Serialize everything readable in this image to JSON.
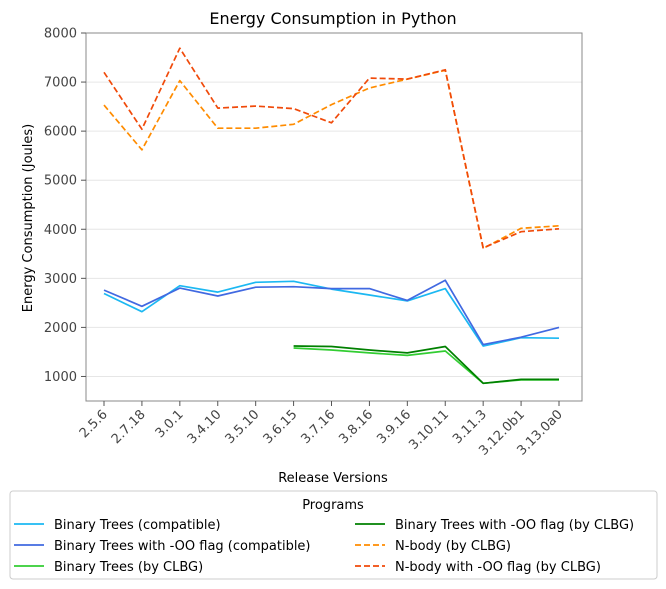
{
  "chart_data": {
    "type": "line",
    "title": "Energy Consumption in Python",
    "xlabel": "Release Versions",
    "ylabel": "Energy Consumption (Joules)",
    "categories": [
      "2.5.6",
      "2.7.18",
      "3.0.1",
      "3.4.10",
      "3.5.10",
      "3.6.15",
      "3.7.16",
      "3.8.16",
      "3.9.16",
      "3.10.11",
      "3.11.3",
      "3.12.0b1",
      "3.13.0a0"
    ],
    "ylim": [
      500,
      8000
    ],
    "yticks": [
      1000,
      2000,
      3000,
      4000,
      5000,
      6000,
      7000,
      8000
    ],
    "grid": "horizontal",
    "legend_title": "Programs",
    "legend_position": "bottom",
    "series": [
      {
        "name": "Binary Trees (compatible)",
        "color": "#1cb8f2",
        "dash": "solid",
        "values": [
          2690,
          2320,
          2850,
          2720,
          2920,
          2940,
          2780,
          2660,
          2540,
          2790,
          1620,
          1790,
          1780
        ]
      },
      {
        "name": "Binary Trees with -OO flag (compatible)",
        "color": "#4169e1",
        "dash": "solid",
        "values": [
          2760,
          2430,
          2800,
          2640,
          2820,
          2830,
          2790,
          2790,
          2550,
          2960,
          1650,
          1800,
          2000
        ]
      },
      {
        "name": "Binary Trees (by CLBG)",
        "color": "#32cd32",
        "dash": "solid",
        "values": [
          null,
          null,
          null,
          null,
          null,
          1580,
          1540,
          1480,
          1430,
          1520,
          860,
          930,
          930
        ]
      },
      {
        "name": "Binary Trees with -OO flag (by CLBG)",
        "color": "#008000",
        "dash": "solid",
        "values": [
          null,
          null,
          null,
          null,
          null,
          1620,
          1610,
          1540,
          1480,
          1610,
          860,
          940,
          940
        ]
      },
      {
        "name": "N-body (by CLBG)",
        "color": "#ff8c00",
        "dash": "dashed",
        "values": [
          6530,
          5620,
          7030,
          6060,
          6060,
          6140,
          6540,
          6880,
          7060,
          7240,
          3610,
          4020,
          4070
        ]
      },
      {
        "name": "N-body with -OO flag (by CLBG)",
        "color": "#f04a0a",
        "dash": "dashed",
        "values": [
          7200,
          6040,
          7690,
          6470,
          6510,
          6460,
          6170,
          7080,
          7060,
          7250,
          3620,
          3950,
          4010
        ]
      }
    ]
  }
}
